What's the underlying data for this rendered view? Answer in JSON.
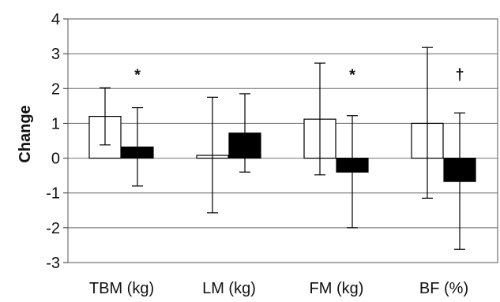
{
  "chart_data": {
    "type": "bar",
    "categories": [
      "TBM (kg)",
      "LM (kg)",
      "FM (kg)",
      "BF (%)"
    ],
    "ylabel": "Change",
    "ylim": [
      -3,
      4
    ],
    "yticks": [
      "-3",
      "-2",
      "-1",
      "0",
      "1",
      "2",
      "3",
      "4"
    ],
    "grid": true,
    "series": [
      {
        "fill": "#ffffff",
        "values": [
          1.2,
          0.08,
          1.12,
          1.0
        ],
        "error_upper": [
          2.02,
          1.75,
          2.73,
          3.18
        ],
        "error_lower": [
          0.38,
          -1.57,
          -0.48,
          -1.15
        ]
      },
      {
        "fill": "#000000",
        "values": [
          0.32,
          0.72,
          -0.4,
          -0.67
        ],
        "error_upper": [
          1.45,
          1.85,
          1.22,
          1.3
        ],
        "error_lower": [
          -0.8,
          -0.4,
          -2.0,
          -2.62
        ]
      }
    ],
    "annotations": [
      {
        "category_index": 0,
        "text": "*"
      },
      {
        "category_index": 1,
        "text": ""
      },
      {
        "category_index": 2,
        "text": "*"
      },
      {
        "category_index": 3,
        "text": "†"
      }
    ]
  }
}
